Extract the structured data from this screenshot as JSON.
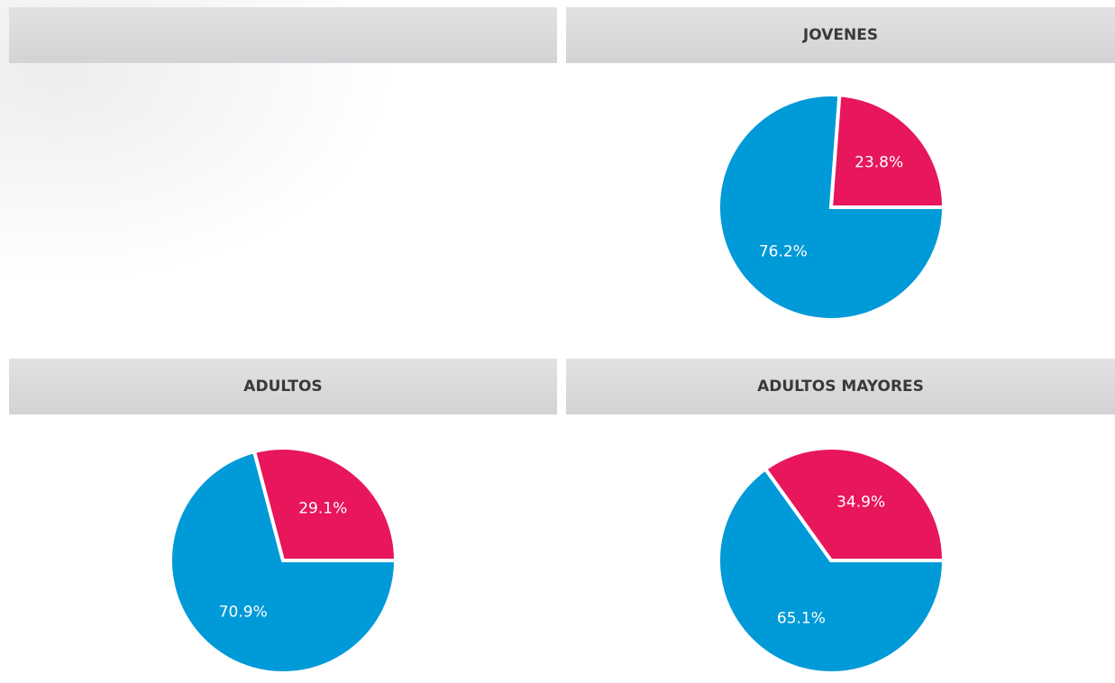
{
  "chart_data": [
    {
      "type": "pie",
      "title": "JOVENES",
      "values": [
        76.2,
        23.8
      ],
      "value_labels": [
        "76.2%",
        "23.8%"
      ],
      "colors": [
        "#009ad8",
        "#e8165a"
      ]
    },
    {
      "type": "pie",
      "title": "ADULTOS",
      "values": [
        70.9,
        29.1
      ],
      "value_labels": [
        "70.9%",
        "29.1%"
      ],
      "colors": [
        "#009ad8",
        "#e8165a"
      ]
    },
    {
      "type": "pie",
      "title": "ADULTOS MAYORES",
      "values": [
        65.1,
        34.9
      ],
      "value_labels": [
        "65.1%",
        "34.9%"
      ],
      "colors": [
        "#009ad8",
        "#e8165a"
      ]
    }
  ]
}
